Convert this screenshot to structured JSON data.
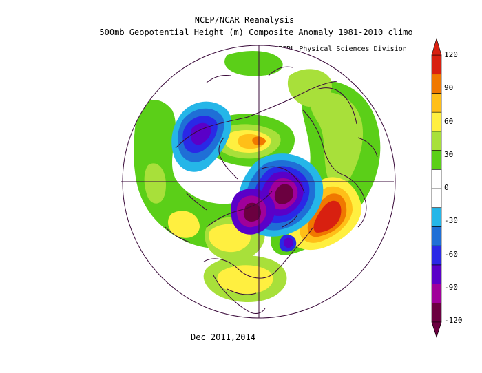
{
  "header": {
    "line1": "NCEP/NCAR Reanalysis",
    "line2": "500mb Geopotential Height (m) Composite Anomaly 1981-2010 climo",
    "credit": "NOAA/ESRL Physical Sciences Division"
  },
  "footer": {
    "dates": "Dec 2011,2014"
  },
  "colorbar": {
    "ticks": [
      "120",
      "90",
      "60",
      "30",
      "0",
      "-30",
      "-60",
      "-90",
      "-120"
    ],
    "colors": [
      "#6b0040",
      "#a0009a",
      "#5a00c8",
      "#2a28e6",
      "#1f6fd6",
      "#25b6e8",
      "#ffffff",
      "#ffffff",
      "#5bcf18",
      "#a8e03a",
      "#ffef40",
      "#ffbf18",
      "#f07800",
      "#d82010"
    ]
  }
}
